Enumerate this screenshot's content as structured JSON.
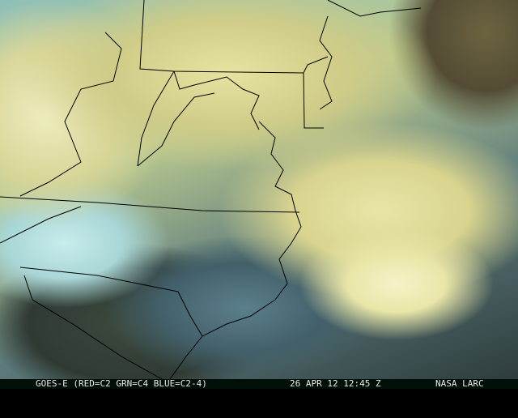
{
  "image": {
    "type": "satellite-rgb-composite",
    "region": "Mid-Atlantic / Southeastern United States",
    "colors": {
      "cloud_bright": "#f4f3c8",
      "cloud_yellow": "#d8d48e",
      "cloud_cyan": "#a9d6d6",
      "clear_land": "#2f3a33",
      "border_line": "#000000"
    }
  },
  "caption": {
    "satellite": "GOES-E (RED=C2 GRN=C4 BLUE=C2-4)",
    "datetime": "26 APR 12 12:45 Z",
    "source": "NASA LARC"
  }
}
